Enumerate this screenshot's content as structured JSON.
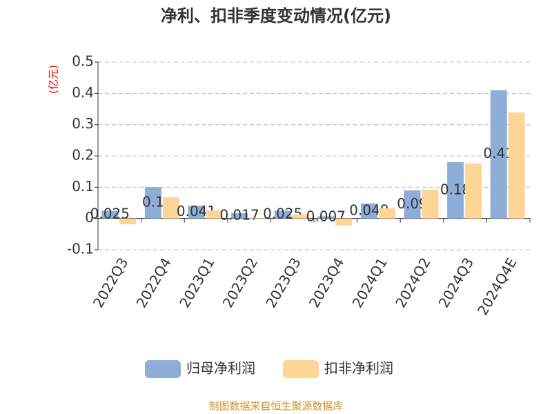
{
  "chart_data": {
    "type": "bar",
    "title": "净利、扣非季度变动情况(亿元)",
    "y_label": "(亿元)",
    "source": "制图数据来自恒生聚源数据库",
    "categories": [
      "2022Q3",
      "2022Q4",
      "2023Q1",
      "2023Q2",
      "2023Q3",
      "2023Q4",
      "2024Q1",
      "2024Q2",
      "2024Q3",
      "2024Q4E"
    ],
    "series": [
      {
        "name": "归母净利润",
        "color": "#8eadd9",
        "values": [
          0.025,
          0.1,
          0.041,
          0.017,
          0.025,
          0.007,
          0.048,
          0.09,
          0.18,
          0.41
        ]
      },
      {
        "name": "扣非净利润",
        "color": "#fdd597",
        "values": [
          -0.018,
          0.068,
          0.026,
          0.002,
          0.013,
          -0.022,
          0.033,
          0.092,
          0.176,
          0.339
        ]
      }
    ],
    "ylim": [
      -0.1,
      0.5
    ],
    "yticks": [
      -0.1,
      0,
      0.1,
      0.2,
      0.3,
      0.4,
      0.5
    ],
    "grid": true
  }
}
